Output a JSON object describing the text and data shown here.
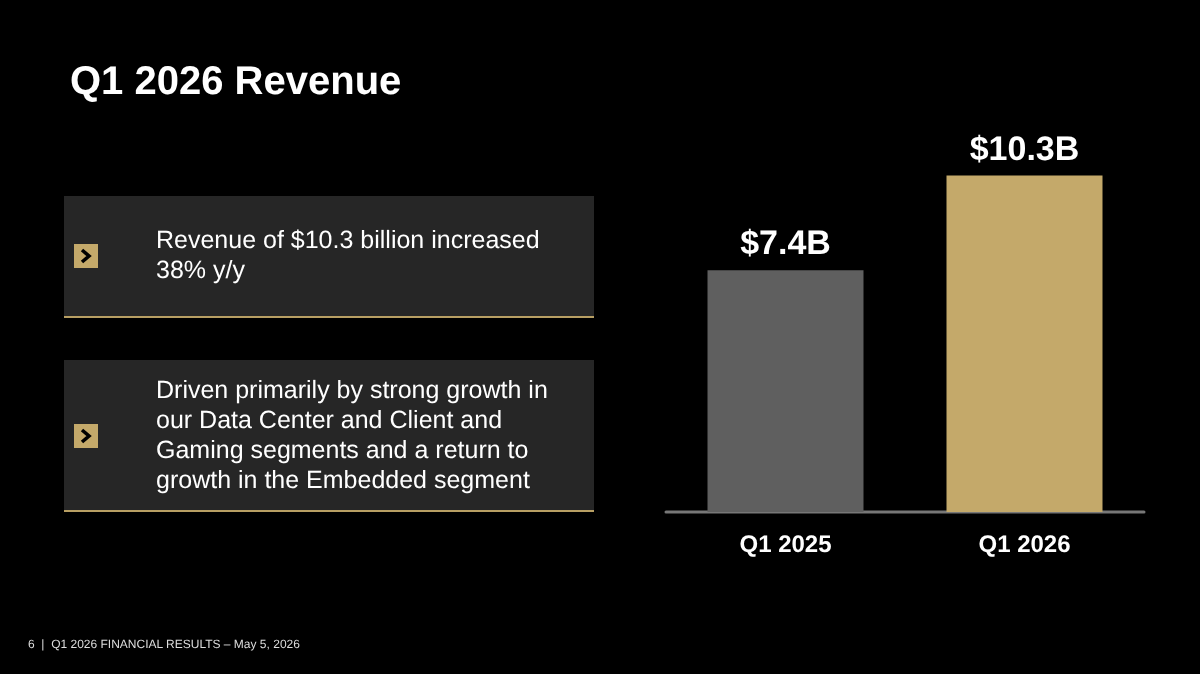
{
  "chart_data": {
    "type": "bar",
    "title": "Q1 2026 Revenue",
    "categories": [
      "Q1 2025",
      "Q1 2026"
    ],
    "values": [
      7.4,
      10.3
    ],
    "colors": [
      "#5f5f5f",
      "#c4a96a"
    ],
    "value_labels": [
      "$7.4B",
      "$10.3B"
    ],
    "annotations": [
      "Revenue of $10.3 billion increased 38% y/y",
      "Driven primarily by strong growth in our Data Center and Client and Gaming segments and a return to growth in the Embedded segment",
      "6  |  Q1 2026 FINANCIAL RESULTS – May 5, 2026"
    ]
  }
}
